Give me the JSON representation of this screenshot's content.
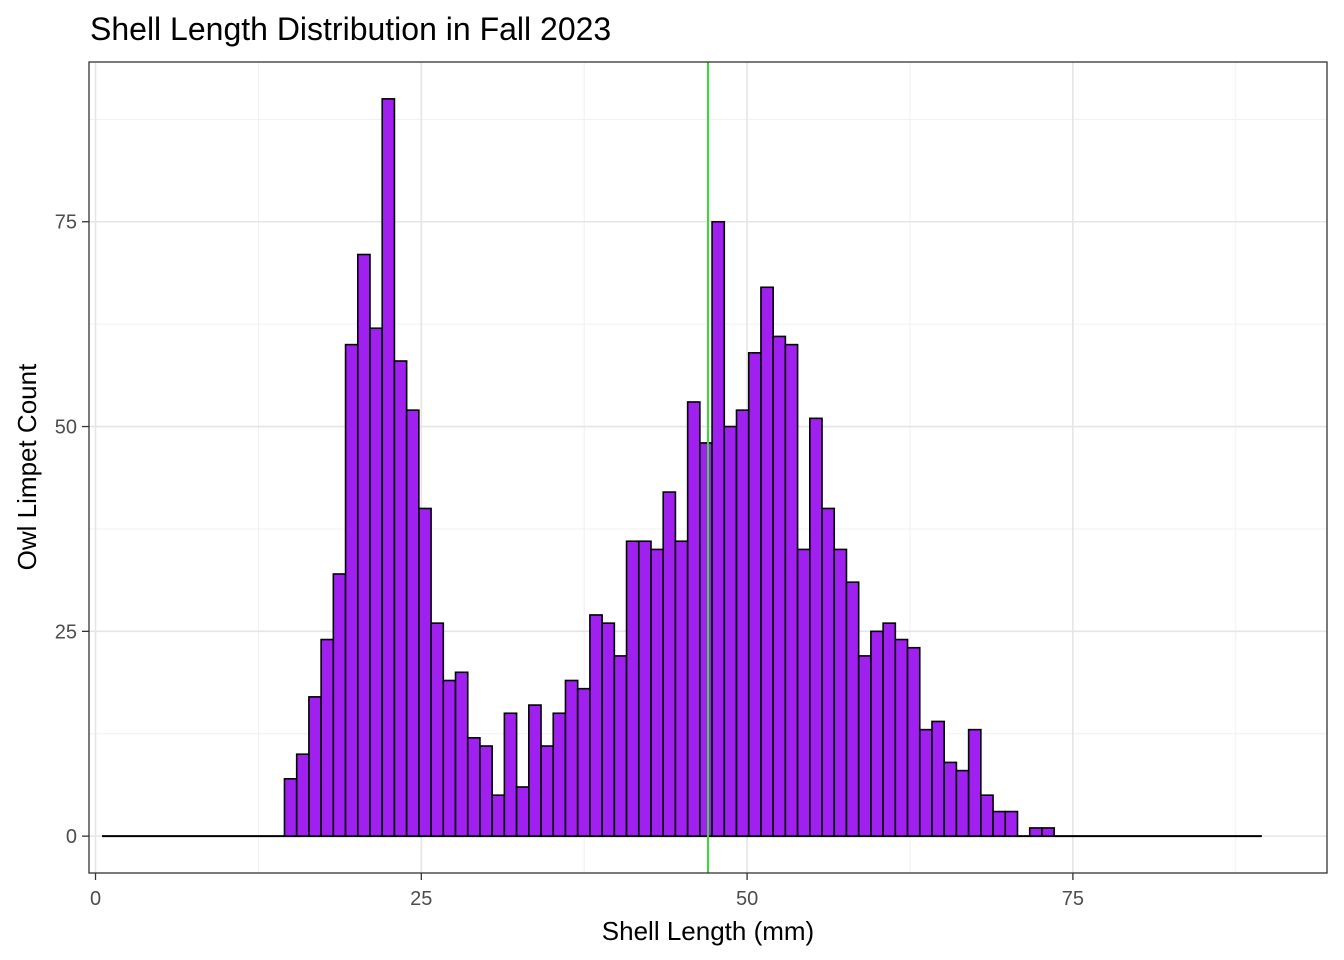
{
  "chart_data": {
    "type": "bar",
    "title": "Shell Length Distribution in Fall 2023",
    "xlabel": "Shell Length (mm)",
    "ylabel": "Owl Limpet Count",
    "xlim": [
      -0.5,
      94.5
    ],
    "ylim": [
      -4.5,
      94.5
    ],
    "x_ticks": [
      {
        "value": 0,
        "label": "0"
      },
      {
        "value": 25,
        "label": "25"
      },
      {
        "value": 50,
        "label": "50"
      },
      {
        "value": 75,
        "label": "75"
      }
    ],
    "y_ticks": [
      {
        "value": 0,
        "label": "0"
      },
      {
        "value": 25,
        "label": "25"
      },
      {
        "value": 50,
        "label": "50"
      },
      {
        "value": 75,
        "label": "75"
      }
    ],
    "grid": true,
    "range": [
      0.5,
      89.5
    ],
    "bin_width": 0.9375,
    "bin_start": 14.5,
    "counts": [
      7,
      10,
      17,
      24,
      32,
      60,
      71,
      62,
      90,
      58,
      52,
      40,
      26,
      19,
      20,
      12,
      11,
      5,
      15,
      6,
      16,
      11,
      15,
      19,
      18,
      27,
      26,
      22,
      36,
      36,
      35,
      42,
      36,
      53,
      48,
      75,
      50,
      52,
      59,
      67,
      61,
      60,
      35,
      51,
      40,
      35,
      31,
      22,
      25,
      26,
      24,
      23,
      13,
      14,
      9,
      8,
      13,
      5,
      3,
      3,
      0,
      1,
      1
    ],
    "vline": {
      "x": 47,
      "color": "#33dd33"
    },
    "colors": {
      "bar_fill": "#a020f0",
      "bar_stroke": "#000000"
    }
  }
}
